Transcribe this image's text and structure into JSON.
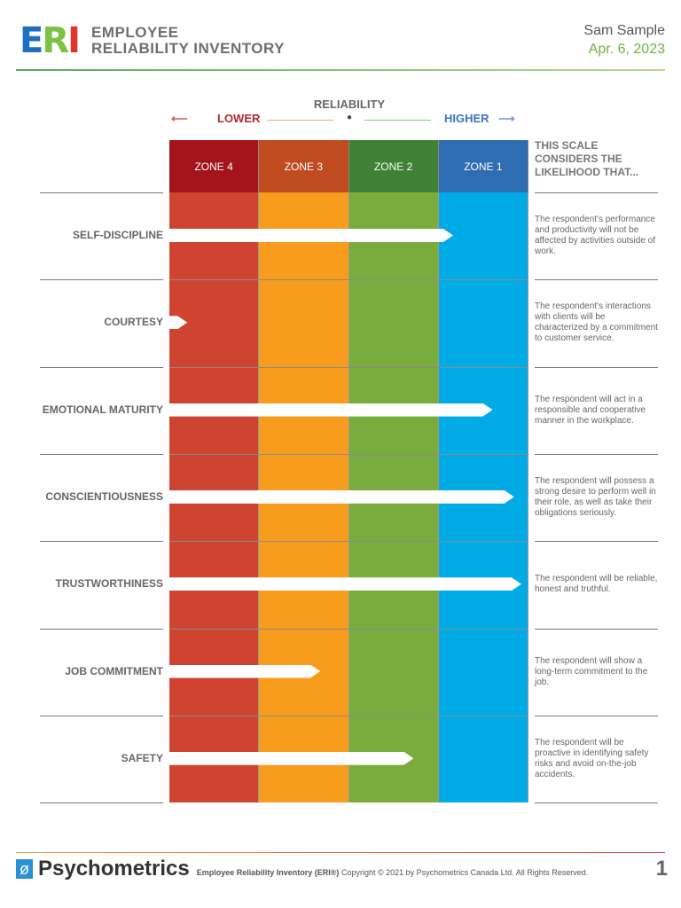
{
  "header": {
    "logo_text": "ERI",
    "title_line1": "EMPLOYEE",
    "title_line2": "RELIABILITY INVENTORY",
    "name": "Sam Sample",
    "date": "Apr. 6, 2023"
  },
  "scale": {
    "title": "RELIABILITY",
    "lower": "LOWER",
    "higher": "HIGHER",
    "considers": "THIS SCALE CONSIDERS THE LIKELIHOOD THAT..."
  },
  "zones": [
    {
      "label": "ZONE 4",
      "head": "#a3141b",
      "body": "#cf4431"
    },
    {
      "label": "ZONE 3",
      "head": "#c04b20",
      "body": "#f89c1e"
    },
    {
      "label": "ZONE 2",
      "head": "#3f8236",
      "body": "#7aac3d"
    },
    {
      "label": "ZONE 1",
      "head": "#2f6db2",
      "body": "#00abe6"
    }
  ],
  "rows": [
    {
      "label": "SELF-DISCIPLINE",
      "score_pct": 79,
      "desc": "The respondent's performance and productivity will not be affected by activities outside of work."
    },
    {
      "label": "COURTESY",
      "score_pct": 5,
      "desc": "The respondent's interactions with clients will be characterized by a commitment to customer service."
    },
    {
      "label": "EMOTIONAL MATURITY",
      "score_pct": 90,
      "desc": "The respondent will act in a responsible and cooperative manner in the workplace."
    },
    {
      "label": "CONSCIENTIOUSNESS",
      "score_pct": 96,
      "desc": "The respondent will possess a strong desire to perform well in their role, as well as take their obligations seriously."
    },
    {
      "label": "TRUSTWORTHINESS",
      "score_pct": 98,
      "desc": "The respondent will be reliable, honest and truthful."
    },
    {
      "label": "JOB COMMITMENT",
      "score_pct": 42,
      "desc": "The respondent will show a long-term commitment to the job."
    },
    {
      "label": "SAFETY",
      "score_pct": 68,
      "desc": "The respondent will be proactive in identifying safety risks and avoid on-the-job accidents."
    }
  ],
  "footer": {
    "brand": "Psychometrics",
    "product": "Employee Reliability Inventory (ERI®)",
    "copyright": "Copyright © 2021 by Psychometrics Canada Ltd. All Rights Reserved.",
    "page": "1"
  }
}
